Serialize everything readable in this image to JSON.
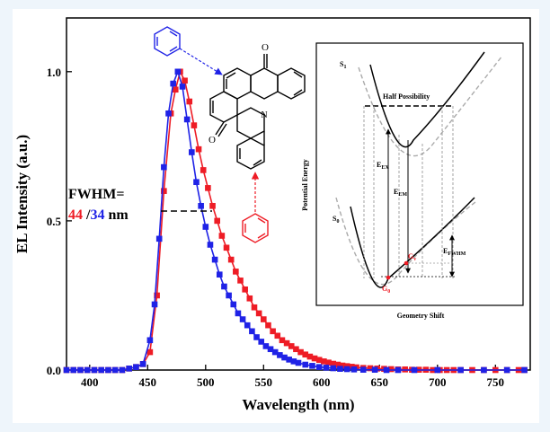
{
  "colors": {
    "red": "#ee1c25",
    "blue": "#1f22e6",
    "gray": "#999999"
  },
  "chart_data": {
    "type": "scatter",
    "xlabel": "Wavelength (nm)",
    "ylabel": "EL Intensity (a.u.)",
    "xlim": [
      380,
      780
    ],
    "ylim": [
      0,
      1.18
    ],
    "x_ticks": [
      400,
      450,
      500,
      550,
      600,
      650,
      700,
      750
    ],
    "y_ticks": [
      0.0,
      0.5,
      1.0
    ],
    "y_tick_labels": [
      "0.0",
      "0.5",
      "1.0"
    ],
    "series": [
      {
        "color": "#ee1c25",
        "x": [
          380,
          386,
          392,
          398,
          404,
          410,
          416,
          422,
          428,
          434,
          440,
          446,
          452,
          458,
          464,
          470,
          474,
          478,
          482,
          486,
          490,
          494,
          498,
          502,
          506,
          510,
          514,
          518,
          522,
          526,
          530,
          534,
          538,
          542,
          546,
          550,
          554,
          558,
          562,
          566,
          570,
          574,
          578,
          582,
          586,
          590,
          594,
          598,
          602,
          606,
          610,
          614,
          618,
          622,
          626,
          630,
          636,
          642,
          648,
          654,
          660,
          666,
          672,
          678,
          684,
          690,
          696,
          702,
          708,
          714,
          720,
          730,
          740,
          750,
          760,
          770,
          775
        ],
        "y": [
          0,
          0,
          0,
          0,
          0,
          0,
          0,
          0,
          0,
          0.005,
          0.01,
          0.02,
          0.06,
          0.25,
          0.6,
          0.86,
          0.94,
          1.0,
          0.97,
          0.9,
          0.82,
          0.74,
          0.67,
          0.61,
          0.55,
          0.5,
          0.45,
          0.41,
          0.37,
          0.33,
          0.3,
          0.27,
          0.24,
          0.21,
          0.19,
          0.17,
          0.15,
          0.13,
          0.115,
          0.1,
          0.09,
          0.08,
          0.07,
          0.06,
          0.052,
          0.045,
          0.039,
          0.034,
          0.029,
          0.025,
          0.021,
          0.018,
          0.015,
          0.013,
          0.011,
          0.009,
          0.007,
          0.006,
          0.005,
          0.004,
          0.003,
          0.002,
          0.002,
          0.001,
          0.001,
          0.001,
          0.0,
          0.0,
          0.0,
          0.0,
          0.0,
          0.0,
          0.0,
          0.0,
          0.0,
          0.0,
          0.0
        ]
      },
      {
        "color": "#1f22e6",
        "x": [
          380,
          386,
          392,
          398,
          404,
          410,
          416,
          422,
          428,
          434,
          440,
          446,
          452,
          456,
          460,
          464,
          468,
          472,
          476,
          480,
          484,
          488,
          492,
          496,
          500,
          504,
          508,
          512,
          516,
          520,
          524,
          528,
          532,
          536,
          540,
          544,
          548,
          552,
          556,
          560,
          564,
          568,
          572,
          576,
          580,
          586,
          592,
          598,
          604,
          610,
          616,
          622,
          628,
          636,
          646,
          656,
          666,
          680,
          700,
          720,
          740,
          760,
          775
        ],
        "y": [
          0,
          0,
          0,
          0,
          0,
          0,
          0,
          0,
          0,
          0.005,
          0.01,
          0.02,
          0.1,
          0.22,
          0.44,
          0.68,
          0.86,
          0.96,
          1.0,
          0.95,
          0.84,
          0.73,
          0.63,
          0.55,
          0.48,
          0.42,
          0.37,
          0.32,
          0.28,
          0.25,
          0.22,
          0.19,
          0.17,
          0.15,
          0.13,
          0.11,
          0.095,
          0.08,
          0.07,
          0.06,
          0.05,
          0.042,
          0.035,
          0.029,
          0.024,
          0.018,
          0.014,
          0.01,
          0.008,
          0.006,
          0.004,
          0.003,
          0.002,
          0.001,
          0.001,
          0.0,
          0.0,
          0.0,
          0.0,
          0.0,
          0.0,
          0.0,
          0.0
        ]
      }
    ],
    "annotations": {
      "fwhm_label": "FWHM=",
      "fwhm_red": "44",
      "fwhm_sep": " /",
      "fwhm_blue": "34",
      "fwhm_unit": " nm"
    },
    "inset": {
      "ylabel": "Potential Energy",
      "xlabel": "Geometry Shift",
      "s1": "S",
      "s1_sub": "1",
      "s0": "S",
      "s0_sub": "0",
      "half": "Half Possibility",
      "eex": "E",
      "eex_sub": "EX",
      "eem": "E",
      "eem_sub": "EM",
      "efwhm": "E",
      "efwhm_sub": "FWHM",
      "g0": "G",
      "g0_sub": "0",
      "gv": "G",
      "gv_sub": "v"
    },
    "molecule": {
      "oxygen_top": "O",
      "oxygen_left": "O",
      "nitrogen": "N"
    }
  }
}
